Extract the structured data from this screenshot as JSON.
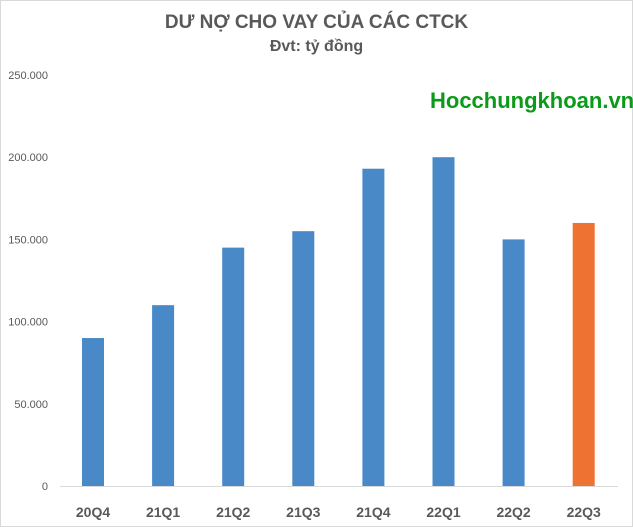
{
  "chart_data": {
    "type": "bar",
    "title": "DƯ NỢ CHO VAY CỦA CÁC CTCK",
    "subtitle": "Đvt: tỷ đồng",
    "categories": [
      "20Q4",
      "21Q1",
      "21Q2",
      "21Q3",
      "21Q4",
      "22Q1",
      "22Q2",
      "22Q3"
    ],
    "values": [
      90000,
      110000,
      145000,
      155000,
      193000,
      200000,
      150000,
      160000
    ],
    "bar_colors": [
      "#4a89c8",
      "#4a89c8",
      "#4a89c8",
      "#4a89c8",
      "#4a89c8",
      "#4a89c8",
      "#4a89c8",
      "#ee7232"
    ],
    "ylim": [
      0,
      250000
    ],
    "yticks": [
      0,
      50000,
      100000,
      150000,
      200000,
      250000
    ],
    "ytick_labels": [
      "0",
      "50.000",
      "100.000",
      "150.000",
      "200.000",
      "250.000"
    ],
    "grid": false,
    "xlabel": "",
    "ylabel": ""
  },
  "watermark": "Hocchungkhoan.vn"
}
